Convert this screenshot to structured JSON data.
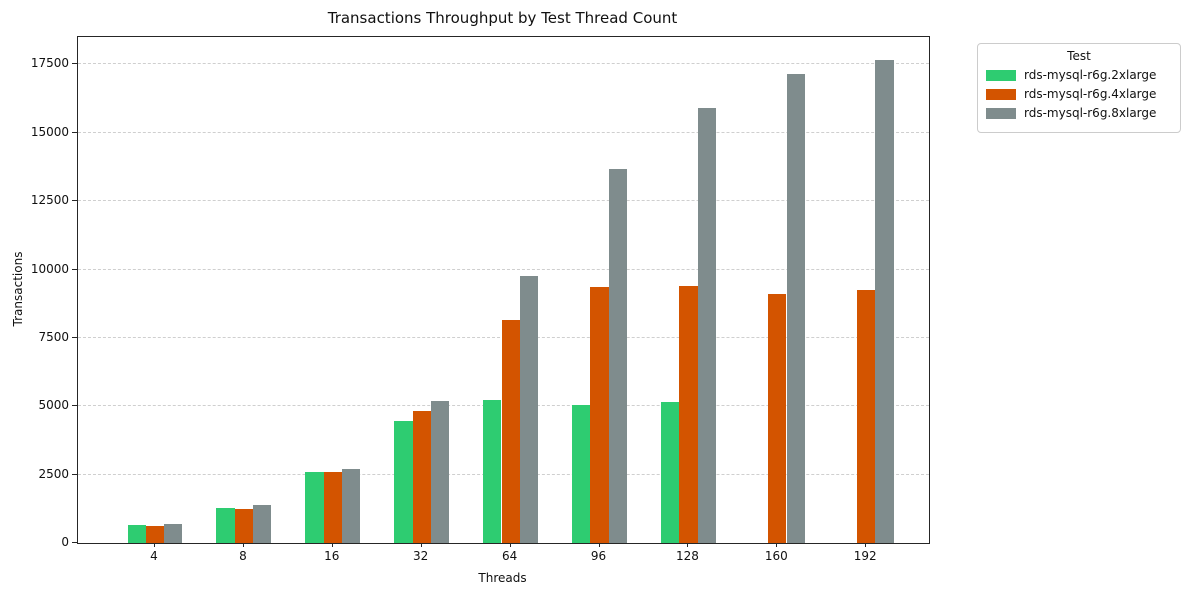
{
  "chart_data": {
    "type": "bar",
    "title": "Transactions Throughput by Test Thread Count",
    "xlabel": "Threads",
    "ylabel": "Transactions",
    "legend_title": "Test",
    "legend_position": "upper-right-outside",
    "grid": "horizontal-dashed",
    "categories": [
      "4",
      "8",
      "16",
      "32",
      "64",
      "96",
      "128",
      "160",
      "192"
    ],
    "series": [
      {
        "name": "rds-mysql-r6g.2xlarge",
        "color": "#2ecc71",
        "values": [
          650,
          1290,
          2580,
          4450,
          5220,
          5060,
          5140,
          null,
          null
        ]
      },
      {
        "name": "rds-mysql-r6g.4xlarge",
        "color": "#d35400",
        "values": [
          620,
          1260,
          2610,
          4820,
          8150,
          9370,
          9380,
          9120,
          9240
        ]
      },
      {
        "name": "rds-mysql-r6g.8xlarge",
        "color": "#7f8c8d",
        "values": [
          700,
          1390,
          2710,
          5200,
          9780,
          13680,
          15900,
          17160,
          17670
        ]
      }
    ],
    "ylim": [
      0,
      18500
    ],
    "yticks": [
      0,
      2500,
      5000,
      7500,
      10000,
      12500,
      15000,
      17500
    ]
  }
}
